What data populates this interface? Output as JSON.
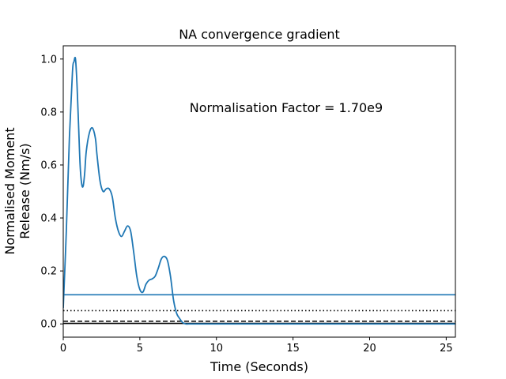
{
  "chart_data": {
    "type": "line",
    "title": "NA convergence gradient",
    "xlabel": "Time (Seconds)",
    "ylabel_lines": [
      "Normalised Moment",
      "Release (Nm/s)"
    ],
    "annotation": "Normalisation Factor = 1.70e9",
    "xlim": [
      0,
      25.6
    ],
    "ylim": [
      -0.05,
      1.05
    ],
    "xticks": [
      0,
      5,
      10,
      15,
      20,
      25
    ],
    "xtick_labels": [
      "0",
      "5",
      "10",
      "15",
      "20",
      "25"
    ],
    "yticks": [
      0.0,
      0.2,
      0.4,
      0.6,
      0.8,
      1.0
    ],
    "ytick_labels": [
      "0.0",
      "0.2",
      "0.4",
      "0.6",
      "0.8",
      "1.0"
    ],
    "grid": false,
    "series": [
      {
        "color": "#1f77b4",
        "x": [
          0,
          0.2,
          0.4,
          0.6,
          0.7,
          0.8,
          0.9,
          1.0,
          1.1,
          1.2,
          1.3,
          1.4,
          1.5,
          1.7,
          1.9,
          2.1,
          2.2,
          2.4,
          2.6,
          2.8,
          3.0,
          3.2,
          3.4,
          3.6,
          3.8,
          4.0,
          4.2,
          4.4,
          4.6,
          4.8,
          5.0,
          5.2,
          5.4,
          5.6,
          5.8,
          6.0,
          6.2,
          6.4,
          6.6,
          6.8,
          7.0,
          7.2,
          7.4,
          7.6,
          7.8,
          8.0,
          8.2,
          8.5,
          9.0,
          10.0,
          15.0,
          20.0,
          25.0,
          25.6
        ],
        "y": [
          0.06,
          0.35,
          0.7,
          0.95,
          0.99,
          1.0,
          0.9,
          0.75,
          0.6,
          0.53,
          0.52,
          0.57,
          0.65,
          0.72,
          0.74,
          0.7,
          0.64,
          0.54,
          0.5,
          0.51,
          0.51,
          0.48,
          0.4,
          0.35,
          0.33,
          0.35,
          0.37,
          0.35,
          0.27,
          0.18,
          0.13,
          0.12,
          0.15,
          0.165,
          0.17,
          0.18,
          0.21,
          0.245,
          0.255,
          0.24,
          0.18,
          0.09,
          0.04,
          0.02,
          0.005,
          0.0,
          0.0,
          0.0,
          0.0,
          0.0,
          0.0,
          0.0,
          0.0,
          0.0
        ]
      }
    ],
    "reference_lines": [
      {
        "y": 0.11,
        "style": "solid",
        "color": "#1f77b4"
      },
      {
        "y": 0.05,
        "style": "dotted",
        "color": "#000000"
      },
      {
        "y": 0.01,
        "style": "dashed",
        "color": "#000000"
      },
      {
        "y": 0.002,
        "style": "solid",
        "color": "#000000"
      }
    ]
  }
}
